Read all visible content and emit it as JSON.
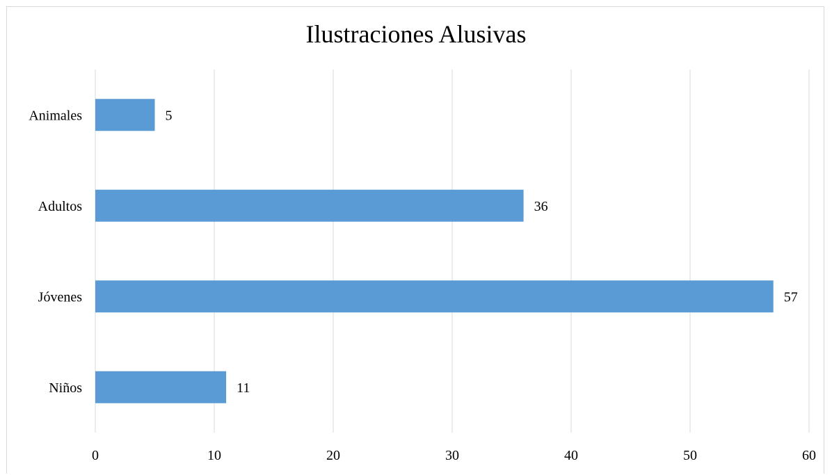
{
  "chart_data": {
    "type": "bar",
    "orientation": "horizontal",
    "title": "Ilustraciones Alusivas",
    "xlabel": "",
    "ylabel": "",
    "categories": [
      "Animales",
      "Adultos",
      "Jóvenes",
      "Niños"
    ],
    "values": [
      5,
      36,
      57,
      11
    ],
    "xlim": [
      0,
      60
    ],
    "xticks": [
      "0",
      "10",
      "20",
      "30",
      "40",
      "50",
      "60"
    ],
    "grid": "vertical",
    "legend": "none",
    "data_labels": true,
    "colors": {
      "bar": "#5b9bd5",
      "grid": "#d9d9d9",
      "text": "#000000"
    }
  }
}
